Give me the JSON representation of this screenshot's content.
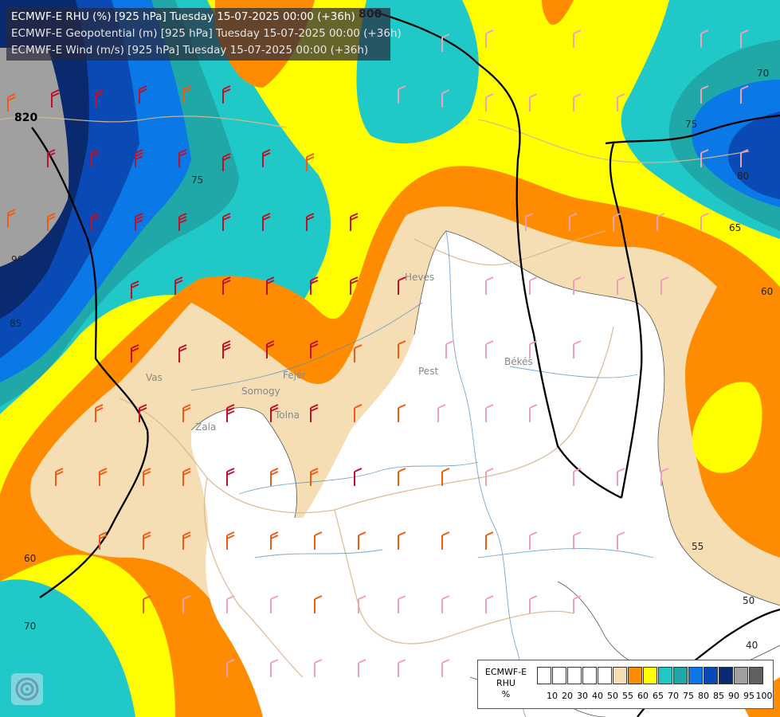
{
  "title_lines": [
    "ECMWF-E RHU (%) [925 hPa] Tuesday 15-07-2025 00:00 (+36h)",
    "ECMWF-E Geopotential (m) [925 hPa] Tuesday 15-07-2025 00:00 (+36h)",
    "ECMWF-E Wind (m/s) [925 hPa] Tuesday 15-07-2025 00:00 (+36h)"
  ],
  "legend": {
    "title": [
      "ECMWF-E",
      "RHU",
      "%"
    ],
    "bins": [
      {
        "label": "10",
        "color": "#ffffff"
      },
      {
        "label": "20",
        "color": "#ffffff"
      },
      {
        "label": "30",
        "color": "#ffffff"
      },
      {
        "label": "40",
        "color": "#ffffff"
      },
      {
        "label": "50",
        "color": "#ffffff"
      },
      {
        "label": "55",
        "color": "#f5deb3"
      },
      {
        "label": "60",
        "color": "#ff8c00"
      },
      {
        "label": "65",
        "color": "#ffff00"
      },
      {
        "label": "70",
        "color": "#20c8c8"
      },
      {
        "label": "75",
        "color": "#20a8a8"
      },
      {
        "label": "80",
        "color": "#0a78e6"
      },
      {
        "label": "85",
        "color": "#0a4ab4"
      },
      {
        "label": "90",
        "color": "#0a2a70"
      },
      {
        "label": "95",
        "color": "#a0a0a0"
      },
      {
        "label": "100",
        "color": "#606060"
      }
    ]
  },
  "geopotential_labels": [
    "800",
    "820"
  ],
  "rhu_contour_labels": [
    "70",
    "75",
    "80",
    "65",
    "60",
    "55",
    "50",
    "40",
    "75",
    "85",
    "90",
    "60",
    "70"
  ],
  "region_labels": [
    "Pest",
    "Békés",
    "Vas",
    "Zala",
    "Somogy",
    "Tolna",
    "Heves",
    "Fejér"
  ]
}
